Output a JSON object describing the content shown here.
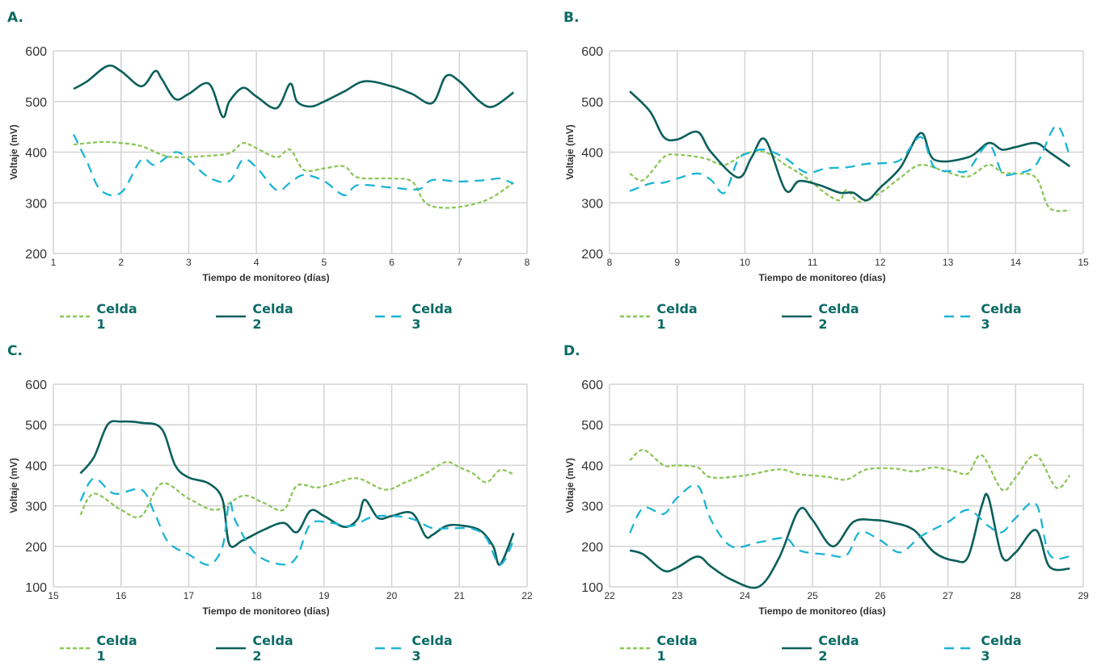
{
  "colors": {
    "celda1": "#8cc657",
    "celda2": "#0b5f5b",
    "celda3": "#1bb4d4",
    "grid": "#d3d3d3",
    "label": "#0b6b64"
  },
  "legend": [
    "Celda 1",
    "Celda 2",
    "Celda 3"
  ],
  "chart_data": [
    {
      "type": "line",
      "panel": "A.",
      "xlabel": "Tiempo de monitoreo (días)",
      "ylabel": "Voltaje (mV)",
      "xlim": [
        1,
        8
      ],
      "ylim": [
        200,
        600
      ],
      "xticks": [
        1,
        2,
        3,
        4,
        5,
        6,
        7,
        8
      ],
      "yticks": [
        200,
        300,
        400,
        500,
        600
      ],
      "grid": true,
      "legend_position": "bottom",
      "series": [
        {
          "name": "Celda 1",
          "style": "short-dash",
          "color": "#8cc657",
          "x": [
            1.3,
            1.7,
            2.0,
            2.3,
            2.6,
            2.8,
            3.2,
            3.6,
            3.8,
            4.0,
            4.3,
            4.5,
            4.7,
            5.0,
            5.3,
            5.5,
            6.0,
            6.3,
            6.5,
            6.8,
            7.2,
            7.5,
            7.8
          ],
          "y": [
            415,
            420,
            418,
            412,
            395,
            390,
            392,
            398,
            418,
            408,
            390,
            405,
            365,
            368,
            372,
            350,
            348,
            342,
            300,
            290,
            297,
            312,
            340
          ]
        },
        {
          "name": "Celda 2",
          "style": "solid",
          "color": "#0b5f5b",
          "x": [
            1.3,
            1.5,
            1.8,
            2.0,
            2.3,
            2.5,
            2.6,
            2.8,
            3.0,
            3.3,
            3.5,
            3.6,
            3.8,
            4.0,
            4.3,
            4.5,
            4.6,
            4.8,
            5.0,
            5.3,
            5.6,
            6.0,
            6.3,
            6.6,
            6.8,
            7.0,
            7.3,
            7.5,
            7.8
          ],
          "y": [
            525,
            540,
            570,
            560,
            530,
            560,
            545,
            505,
            515,
            535,
            470,
            500,
            527,
            510,
            487,
            535,
            500,
            490,
            500,
            520,
            540,
            530,
            515,
            497,
            550,
            540,
            500,
            490,
            518
          ]
        },
        {
          "name": "Celda 3",
          "style": "long-dash",
          "color": "#1bb4d4",
          "x": [
            1.3,
            1.5,
            1.7,
            2.0,
            2.3,
            2.5,
            2.8,
            3.0,
            3.3,
            3.6,
            3.8,
            4.0,
            4.3,
            4.5,
            4.7,
            5.0,
            5.3,
            5.5,
            6.0,
            6.4,
            6.6,
            7.0,
            7.4,
            7.6,
            7.8
          ],
          "y": [
            435,
            380,
            325,
            320,
            385,
            375,
            400,
            385,
            350,
            343,
            385,
            370,
            325,
            340,
            355,
            343,
            315,
            335,
            330,
            327,
            345,
            342,
            345,
            348,
            338
          ]
        }
      ]
    },
    {
      "type": "line",
      "panel": "B.",
      "xlabel": "Tiempo de monitoreo (días)",
      "ylabel": "Voltaje (mV)",
      "xlim": [
        8,
        15
      ],
      "ylim": [
        200,
        600
      ],
      "xticks": [
        8,
        9,
        10,
        11,
        12,
        13,
        14,
        15
      ],
      "yticks": [
        200,
        300,
        400,
        500,
        600
      ],
      "grid": true,
      "legend_position": "bottom",
      "series": [
        {
          "name": "Celda 1",
          "style": "short-dash",
          "color": "#8cc657",
          "x": [
            8.3,
            8.5,
            8.8,
            9.0,
            9.4,
            9.7,
            10.0,
            10.3,
            10.6,
            10.9,
            11.2,
            11.4,
            11.5,
            11.7,
            12.0,
            12.3,
            12.6,
            13.0,
            13.3,
            13.6,
            13.8,
            14.0,
            14.3,
            14.5,
            14.8
          ],
          "y": [
            358,
            345,
            390,
            395,
            388,
            375,
            397,
            400,
            375,
            350,
            318,
            305,
            325,
            302,
            320,
            350,
            375,
            360,
            352,
            375,
            360,
            358,
            350,
            290,
            285
          ]
        },
        {
          "name": "Celda 2",
          "style": "solid",
          "color": "#0b5f5b",
          "x": [
            8.3,
            8.6,
            8.8,
            9.0,
            9.3,
            9.5,
            9.9,
            10.1,
            10.3,
            10.6,
            10.8,
            11.1,
            11.4,
            11.6,
            11.8,
            12.0,
            12.3,
            12.6,
            12.8,
            13.3,
            13.6,
            13.8,
            14.0,
            14.3,
            14.5,
            14.8
          ],
          "y": [
            520,
            480,
            430,
            425,
            440,
            400,
            350,
            390,
            425,
            325,
            343,
            335,
            320,
            320,
            305,
            330,
            370,
            438,
            385,
            390,
            418,
            405,
            410,
            418,
            400,
            372
          ]
        },
        {
          "name": "Celda 3",
          "style": "long-dash",
          "color": "#1bb4d4",
          "x": [
            8.3,
            8.6,
            8.8,
            9.0,
            9.3,
            9.5,
            9.7,
            9.9,
            10.1,
            10.3,
            10.6,
            10.9,
            11.2,
            11.5,
            11.8,
            12.0,
            12.3,
            12.6,
            12.8,
            13.1,
            13.3,
            13.6,
            13.8,
            14.0,
            14.3,
            14.6,
            14.8
          ],
          "y": [
            323,
            338,
            340,
            348,
            358,
            345,
            320,
            385,
            400,
            405,
            388,
            360,
            368,
            370,
            377,
            378,
            385,
            430,
            370,
            363,
            365,
            415,
            360,
            358,
            375,
            452,
            392
          ]
        }
      ]
    },
    {
      "type": "line",
      "panel": "C.",
      "xlabel": "Tiempo de monitoreo (días)",
      "ylabel": "Voltaje (mV)",
      "xlim": [
        15,
        22
      ],
      "ylim": [
        100,
        600
      ],
      "xticks": [
        15,
        16,
        17,
        18,
        19,
        20,
        21,
        22
      ],
      "yticks": [
        100,
        200,
        300,
        400,
        500,
        600
      ],
      "grid": true,
      "legend_position": "bottom",
      "series": [
        {
          "name": "Celda 1",
          "style": "short-dash",
          "color": "#8cc657",
          "x": [
            15.4,
            15.6,
            16.0,
            16.3,
            16.6,
            17.0,
            17.4,
            17.8,
            18.1,
            18.4,
            18.6,
            18.9,
            19.2,
            19.5,
            19.9,
            20.2,
            20.5,
            20.8,
            21.0,
            21.2,
            21.4,
            21.6,
            21.8
          ],
          "y": [
            278,
            330,
            290,
            275,
            355,
            318,
            290,
            325,
            308,
            290,
            350,
            345,
            358,
            368,
            340,
            358,
            380,
            408,
            395,
            380,
            358,
            388,
            378
          ]
        },
        {
          "name": "Celda 2",
          "style": "solid",
          "color": "#0b5f5b",
          "x": [
            15.4,
            15.6,
            15.8,
            16.0,
            16.3,
            16.6,
            16.8,
            17.0,
            17.3,
            17.5,
            17.6,
            17.8,
            18.1,
            18.4,
            18.6,
            18.8,
            19.0,
            19.3,
            19.5,
            19.6,
            19.8,
            20.0,
            20.3,
            20.5,
            20.6,
            20.8,
            21.0,
            21.3,
            21.5,
            21.6,
            21.8
          ],
          "y": [
            380,
            420,
            500,
            508,
            505,
            490,
            400,
            370,
            355,
            315,
            205,
            215,
            240,
            258,
            235,
            288,
            275,
            248,
            268,
            315,
            270,
            275,
            282,
            225,
            228,
            250,
            252,
            240,
            200,
            155,
            233
          ]
        },
        {
          "name": "Celda 3",
          "style": "long-dash",
          "color": "#1bb4d4",
          "x": [
            15.4,
            15.6,
            15.9,
            16.3,
            16.5,
            16.7,
            17.0,
            17.3,
            17.5,
            17.6,
            17.7,
            18.0,
            18.4,
            18.6,
            18.8,
            19.1,
            19.4,
            19.7,
            20.0,
            20.3,
            20.6,
            20.9,
            21.2,
            21.4,
            21.6,
            21.8
          ],
          "y": [
            312,
            368,
            330,
            340,
            280,
            210,
            180,
            155,
            200,
            310,
            260,
            180,
            155,
            175,
            255,
            258,
            250,
            272,
            275,
            268,
            245,
            245,
            243,
            220,
            155,
            215
          ]
        }
      ]
    },
    {
      "type": "line",
      "panel": "D.",
      "xlabel": "Tiempo de monitoreo (días)",
      "ylabel": "Voltaje (mV)",
      "xlim": [
        22,
        29
      ],
      "ylim": [
        100,
        600
      ],
      "xticks": [
        22,
        23,
        24,
        25,
        26,
        27,
        28,
        29
      ],
      "yticks": [
        100,
        200,
        300,
        400,
        500,
        600
      ],
      "grid": true,
      "legend_position": "bottom",
      "series": [
        {
          "name": "Celda 1",
          "style": "short-dash",
          "color": "#8cc657",
          "x": [
            22.3,
            22.5,
            22.8,
            23.0,
            23.3,
            23.5,
            24.0,
            24.5,
            24.8,
            25.2,
            25.5,
            25.8,
            26.2,
            26.5,
            26.8,
            27.1,
            27.3,
            27.5,
            27.8,
            28.0,
            28.3,
            28.6,
            28.8
          ],
          "y": [
            412,
            438,
            400,
            400,
            395,
            370,
            375,
            390,
            378,
            372,
            365,
            390,
            392,
            385,
            395,
            385,
            380,
            425,
            340,
            370,
            425,
            345,
            375
          ]
        },
        {
          "name": "Celda 2",
          "style": "solid",
          "color": "#0b5f5b",
          "x": [
            22.3,
            22.5,
            22.8,
            23.0,
            23.3,
            23.5,
            23.8,
            24.2,
            24.5,
            24.8,
            25.0,
            25.3,
            25.6,
            25.9,
            26.2,
            26.5,
            26.8,
            27.1,
            27.3,
            27.5,
            27.6,
            27.8,
            28.0,
            28.3,
            28.5,
            28.8
          ],
          "y": [
            190,
            180,
            140,
            148,
            175,
            150,
            118,
            100,
            170,
            290,
            265,
            200,
            260,
            265,
            258,
            240,
            185,
            165,
            175,
            300,
            320,
            175,
            185,
            240,
            150,
            145
          ]
        },
        {
          "name": "Celda 3",
          "style": "long-dash",
          "color": "#1bb4d4",
          "x": [
            22.3,
            22.5,
            22.8,
            23.0,
            23.3,
            23.5,
            23.8,
            24.2,
            24.6,
            24.8,
            25.2,
            25.5,
            25.7,
            26.0,
            26.3,
            26.6,
            27.0,
            27.3,
            27.6,
            27.8,
            28.0,
            28.3,
            28.5,
            28.8
          ],
          "y": [
            233,
            295,
            280,
            320,
            350,
            265,
            200,
            210,
            220,
            190,
            180,
            178,
            235,
            215,
            185,
            225,
            260,
            290,
            250,
            235,
            270,
            305,
            180,
            175
          ]
        }
      ]
    }
  ]
}
